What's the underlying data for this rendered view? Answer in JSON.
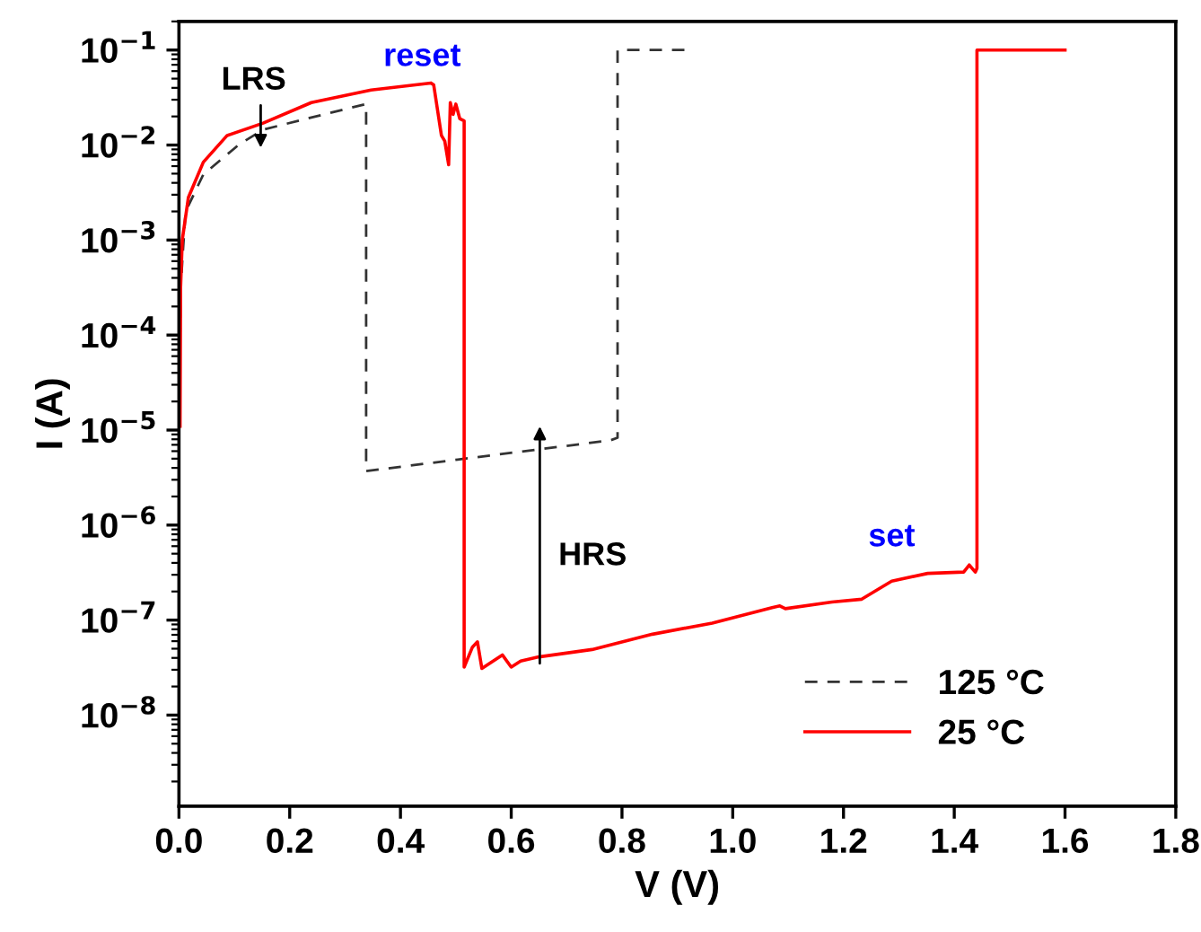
{
  "chart_data": {
    "type": "line",
    "log": "y",
    "xlabel": "V (V)",
    "ylabel": "I (A)",
    "xlim": [
      0,
      1.8
    ],
    "xticks": [
      {
        "value": 0,
        "label": "0.0"
      },
      0.2,
      0.4,
      0.6,
      0.8,
      {
        "value": 1,
        "label": "1.0"
      },
      1.2,
      1.4,
      1.6,
      1.8
    ],
    "ylim": [
      1.1e-09,
      0.2
    ],
    "yticks": [
      {
        "value": 1e-08,
        "label": "10$^{−8}$"
      },
      {
        "value": 1e-07,
        "label": "10$^{−7}$"
      },
      {
        "value": 1e-06,
        "label": "10$^{−6}$"
      },
      {
        "value": 1e-05,
        "label": "10$^{−5}$"
      },
      {
        "value": 0.0001,
        "label": "10$^{−4}$"
      },
      {
        "value": 0.001,
        "label": "10$^{−3}$"
      },
      {
        "value": 0.01,
        "label": "10$^{−2}$"
      },
      {
        "value": 0.1,
        "label": "10$^{−1}$"
      }
    ],
    "grid": false,
    "legend": "bottom right",
    "marker": "none",
    "series": [
      {
        "name": "125 °C",
        "color": "#333333",
        "line_style": "dashed",
        "x": [
          0,
          0.003,
          0.007,
          0.012,
          0.044,
          0.109,
          0.152,
          0.239,
          0.338,
          0.338,
          0.779,
          0.792,
          0.792,
          0.914
        ],
        "values": [
          1e-05,
          0.0003,
          0.00074,
          0.002,
          0.0049,
          0.0102,
          0.0145,
          0.0195,
          0.027,
          3.7e-06,
          7.8e-06,
          8.3e-06,
          0.1,
          0.1
        ]
      },
      {
        "name": "25 °C",
        "color": "#ff0000",
        "line_style": "solid",
        "x": [
          0.002,
          0.003,
          0.006,
          0.017,
          0.044,
          0.087,
          0.152,
          0.239,
          0.347,
          0.455,
          0.46,
          0.474,
          0.48,
          0.487,
          0.49,
          0.495,
          0.5,
          0.507,
          0.515,
          0.515,
          0.53,
          0.539,
          0.547,
          0.584,
          0.6,
          0.617,
          0.65,
          0.746,
          0.855,
          0.963,
          1.071,
          1.085,
          1.095,
          1.179,
          1.233,
          1.287,
          1.352,
          1.417,
          1.427,
          1.438,
          1.441,
          1.441,
          1.6
        ],
        "values": [
          1.1e-05,
          0.00032,
          0.001,
          0.0028,
          0.0066,
          0.0126,
          0.017,
          0.028,
          0.038,
          0.045,
          0.043,
          0.0126,
          0.011,
          0.0062,
          0.028,
          0.021,
          0.027,
          0.019,
          0.018,
          3.2e-08,
          5.2e-08,
          5.9e-08,
          3.1e-08,
          4.3e-08,
          3.2e-08,
          3.7e-08,
          4.1e-08,
          4.9e-08,
          7.1e-08,
          9.3e-08,
          1.35e-07,
          1.41e-07,
          1.32e-07,
          1.55e-07,
          1.66e-07,
          2.57e-07,
          3.1e-07,
          3.2e-07,
          3.8e-07,
          3.2e-07,
          3.5e-07,
          0.1,
          0.1
        ]
      }
    ],
    "annotations": [
      "LRS",
      "reset",
      "set",
      "HRS"
    ]
  }
}
